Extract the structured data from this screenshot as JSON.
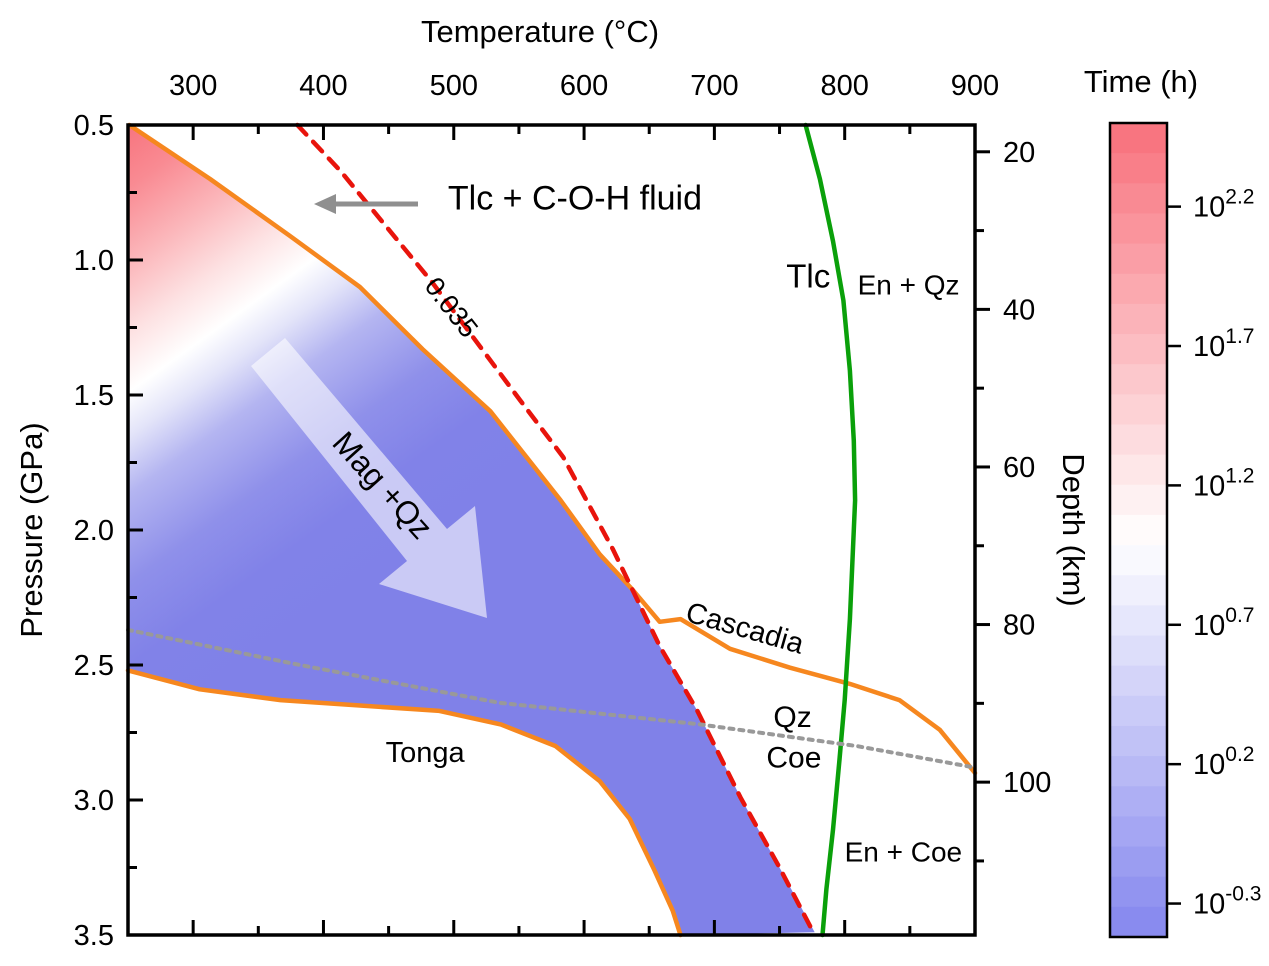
{
  "chart_data": {
    "type": "line",
    "title": "",
    "axes": {
      "top_x": {
        "label": "Temperature (°C)",
        "range": [
          250,
          900
        ],
        "major_ticks": [
          300,
          400,
          500,
          600,
          700,
          800,
          900
        ],
        "minor_ticks": [
          350,
          450,
          550,
          650,
          750,
          850
        ]
      },
      "left_y": {
        "label": "Pressure (GPa)",
        "range": [
          0.5,
          3.5
        ],
        "major_ticks": [
          "0.5",
          "1.0",
          "1.5",
          "2.0",
          "2.5",
          "3.0",
          "3.5"
        ],
        "minor_ticks": [
          0.75,
          1.25,
          1.75,
          2.25,
          2.75,
          3.25
        ]
      },
      "right_y": {
        "label": "Depth (km)",
        "range": [
          16.6,
          119.4
        ],
        "major_ticks": [
          20,
          40,
          60,
          80,
          100
        ],
        "minor_ticks": [
          30,
          50,
          70,
          90,
          110
        ]
      },
      "grid": false
    },
    "series": [
      {
        "name": "cascadia-geotherm",
        "color": "#f6871f",
        "width": 4.5,
        "dash": "",
        "points": [
          [
            251,
            0.5
          ],
          [
            313,
            0.7
          ],
          [
            374,
            0.91
          ],
          [
            428,
            1.1
          ],
          [
            476,
            1.33
          ],
          [
            528,
            1.56
          ],
          [
            582,
            1.89
          ],
          [
            612,
            2.09
          ],
          [
            637,
            2.22
          ],
          [
            658,
            2.34
          ],
          [
            674,
            2.33
          ],
          [
            712,
            2.44
          ],
          [
            758,
            2.51
          ],
          [
            804,
            2.57
          ],
          [
            842,
            2.63
          ],
          [
            873,
            2.74
          ],
          [
            900,
            2.9
          ]
        ]
      },
      {
        "name": "tonga-geotherm",
        "color": "#f6871f",
        "width": 4.5,
        "dash": "",
        "points": [
          [
            250,
            2.52
          ],
          [
            305,
            2.59
          ],
          [
            367,
            2.63
          ],
          [
            428,
            2.65
          ],
          [
            489,
            2.67
          ],
          [
            536,
            2.72
          ],
          [
            578,
            2.8
          ],
          [
            612,
            2.93
          ],
          [
            635,
            3.07
          ],
          [
            654,
            3.26
          ],
          [
            668,
            3.41
          ],
          [
            674,
            3.5
          ]
        ]
      },
      {
        "name": "isopleth-0.035",
        "color": "#e8140c",
        "width": 4.5,
        "dash": "13 10",
        "points": [
          [
            380,
            0.5
          ],
          [
            413,
            0.67
          ],
          [
            483,
            1.08
          ],
          [
            551,
            1.52
          ],
          [
            584,
            1.73
          ],
          [
            622,
            2.07
          ],
          [
            637,
            2.22
          ],
          [
            658,
            2.43
          ],
          [
            687,
            2.67
          ],
          [
            720,
            2.99
          ],
          [
            750,
            3.25
          ],
          [
            777,
            3.5
          ]
        ]
      },
      {
        "name": "talc-breakdown",
        "color": "#0aa00a",
        "width": 4.5,
        "dash": "",
        "points": [
          [
            770,
            0.5
          ],
          [
            781,
            0.7
          ],
          [
            791,
            0.93
          ],
          [
            799,
            1.15
          ],
          [
            804,
            1.41
          ],
          [
            807,
            1.67
          ],
          [
            808,
            1.89
          ],
          [
            806,
            2.11
          ],
          [
            804,
            2.33
          ],
          [
            800,
            2.63
          ],
          [
            796,
            2.85
          ],
          [
            791,
            3.11
          ],
          [
            786,
            3.33
          ],
          [
            783,
            3.5
          ]
        ]
      },
      {
        "name": "qz-coe-boundary",
        "color": "#999999",
        "width": 4,
        "dash": "4 6",
        "points": [
          [
            250,
            2.37
          ],
          [
            382,
            2.5
          ],
          [
            535,
            2.64
          ],
          [
            689,
            2.72
          ],
          [
            809,
            2.8
          ],
          [
            900,
            2.88
          ]
        ]
      }
    ],
    "fill_region": {
      "name": "reaction-time-field",
      "points": [
        [
          250,
          0.5
        ],
        [
          313,
          0.7
        ],
        [
          374,
          0.91
        ],
        [
          428,
          1.1
        ],
        [
          476,
          1.33
        ],
        [
          528,
          1.56
        ],
        [
          582,
          1.89
        ],
        [
          612,
          2.09
        ],
        [
          637,
          2.22
        ],
        [
          658,
          2.43
        ],
        [
          687,
          2.67
        ],
        [
          720,
          2.99
        ],
        [
          750,
          3.25
        ],
        [
          777,
          3.49
        ],
        [
          673,
          3.5
        ],
        [
          668,
          3.41
        ],
        [
          654,
          3.26
        ],
        [
          635,
          3.07
        ],
        [
          612,
          2.93
        ],
        [
          578,
          2.8
        ],
        [
          536,
          2.72
        ],
        [
          489,
          2.67
        ],
        [
          428,
          2.65
        ],
        [
          367,
          2.63
        ],
        [
          305,
          2.59
        ],
        [
          250,
          2.52
        ]
      ],
      "gradient": {
        "red": "#f8747e",
        "white": "#ffffff",
        "blue": "#8081e8"
      }
    },
    "annotations": [
      {
        "name": "tlc-coh-fluid-label",
        "text": "Tlc + C-O-H fluid",
        "T": 593,
        "P": 0.78,
        "rot": 0,
        "color": "#e8140c",
        "size": 34
      },
      {
        "name": "isopleth-value-label",
        "text": "0.035",
        "T": 497,
        "P": 1.18,
        "rot": 52,
        "color": "#e8140c",
        "size": 27
      },
      {
        "name": "mag-qz-label",
        "text": "Mag +Qz",
        "T": 444,
        "P": 1.84,
        "rot": 48,
        "color": "#e8140c",
        "size": 32
      },
      {
        "name": "cascadia-label",
        "text": "Cascadia",
        "T": 723,
        "P": 2.37,
        "rot": 16,
        "color": "#f6871f",
        "size": 29
      },
      {
        "name": "tonga-label",
        "text": "Tonga",
        "T": 478,
        "P": 2.83,
        "rot": 0,
        "color": "#f6871f",
        "size": 29
      },
      {
        "name": "qz-label",
        "text": "Qz",
        "T": 760,
        "P": 2.7,
        "rot": 0,
        "color": "#8c8c8c",
        "size": 30
      },
      {
        "name": "coe-label",
        "text": "Coe",
        "T": 761,
        "P": 2.85,
        "rot": 0,
        "color": "#8c8c8c",
        "size": 30
      },
      {
        "name": "tlc-label",
        "text": "Tlc",
        "T": 772,
        "P": 1.07,
        "rot": 0,
        "color": "#0aa00a",
        "size": 33
      },
      {
        "name": "en-qz-label",
        "text": "En + Qz",
        "T": 849,
        "P": 1.1,
        "rot": 0,
        "color": "#0aa00a",
        "size": 28
      },
      {
        "name": "en-coe-label",
        "text": "En + Coe",
        "T": 845,
        "P": 3.2,
        "rot": 0,
        "color": "#0aa00a",
        "size": 28
      }
    ],
    "colorbar": {
      "title": "Time (h)",
      "log_range_top_to_bottom": [
        2.5,
        -0.42
      ],
      "white_at": 1.0,
      "segments": 27,
      "ticks": [
        {
          "exp": "2.2"
        },
        {
          "exp": "1.7"
        },
        {
          "exp": "1.2"
        },
        {
          "exp": "0.7"
        },
        {
          "exp": "0.2"
        },
        {
          "exp": "-0.3"
        }
      ],
      "tick_values": [
        2.2,
        1.7,
        1.2,
        0.7,
        0.2,
        -0.3
      ],
      "colors": {
        "top": "#f8707b",
        "mid": "#ffffff",
        "bottom": "#8486ee"
      }
    },
    "titles": {
      "top_axis": "Temperature (°C)",
      "left_axis": "Pressure (GPa)",
      "right_axis": "Depth (km)",
      "colorbar": "Time (h)"
    }
  }
}
